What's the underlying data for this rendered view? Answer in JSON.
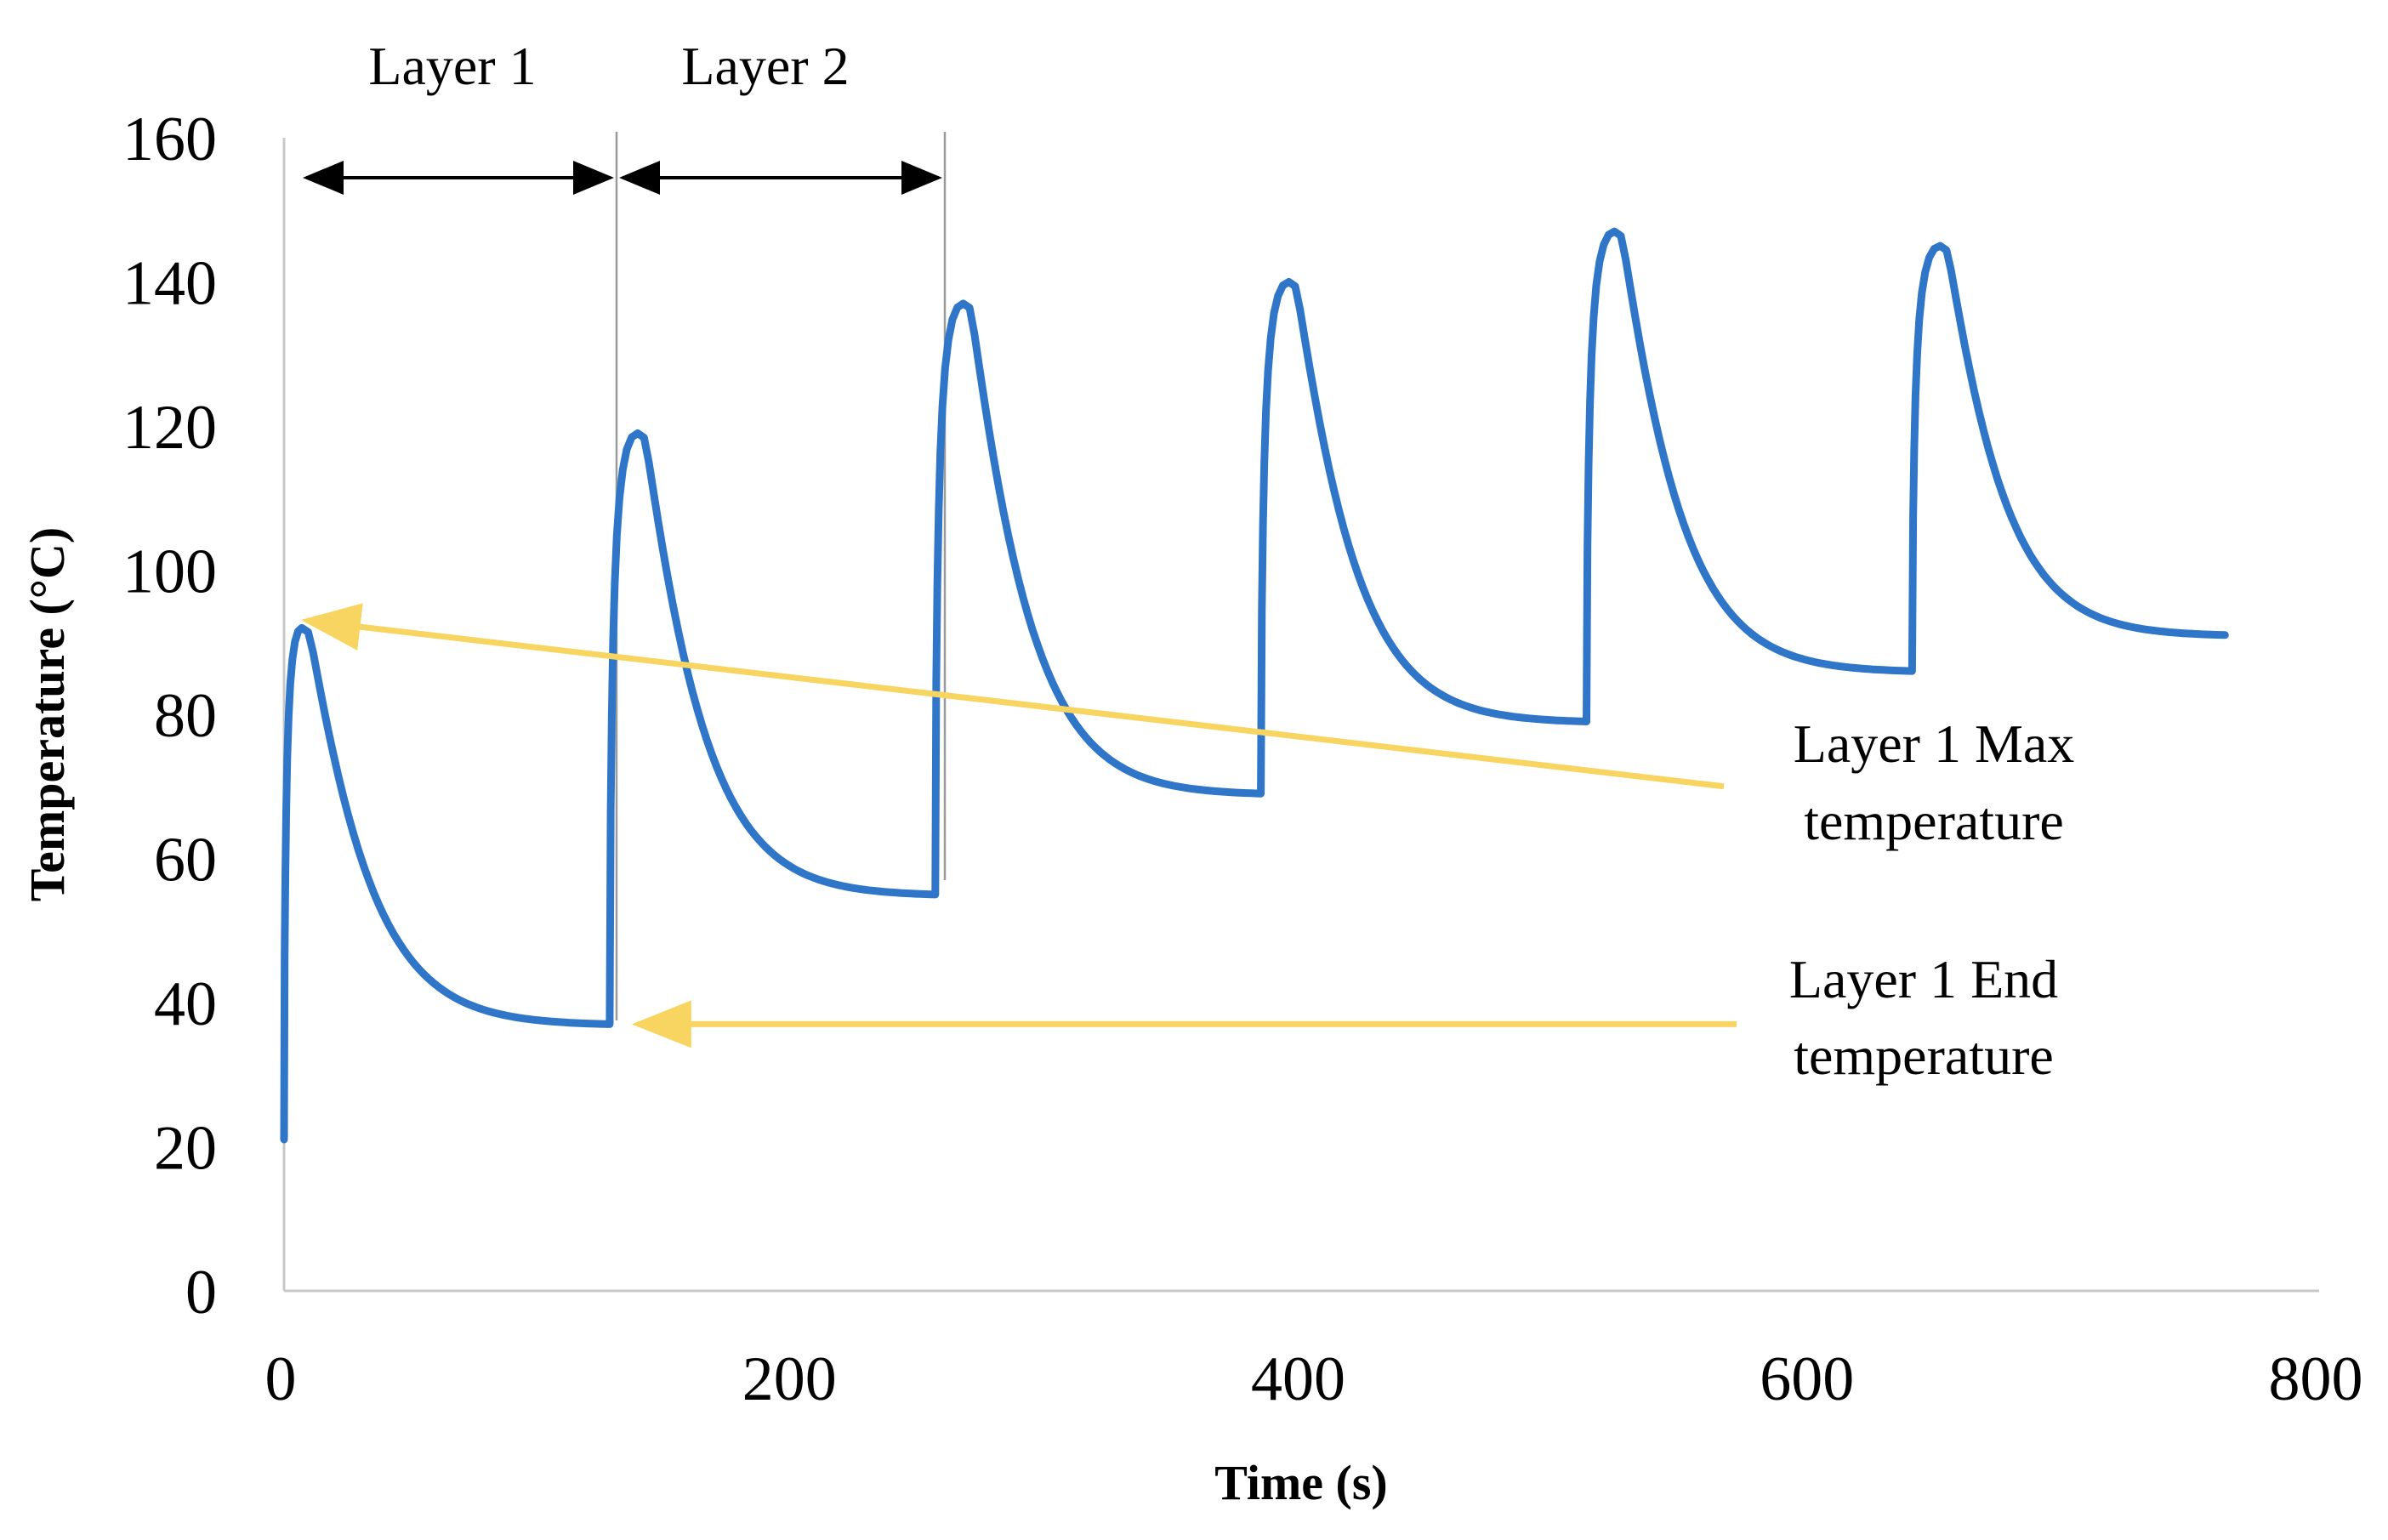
{
  "chart_data": {
    "type": "line",
    "title": "",
    "xlabel": "Time (s)",
    "ylabel": "Temperature (°C)",
    "xlim": [
      0,
      800
    ],
    "ylim": [
      0,
      160
    ],
    "xticks": [
      0,
      200,
      400,
      600,
      800
    ],
    "yticks": [
      0,
      20,
      40,
      60,
      80,
      100,
      120,
      140,
      160
    ],
    "grid": false,
    "series_color": "#2f75c8",
    "annotation_color": "#f7d560",
    "layer_period_s": 128,
    "layers": [
      {
        "start": 0,
        "start_temp": 21,
        "peak_time": 7,
        "peak_temp": 92,
        "end_time": 128,
        "end_temp": 37
      },
      {
        "start": 128,
        "start_temp": 37,
        "peak_time": 139,
        "peak_temp": 119,
        "end_time": 256,
        "end_temp": 55
      },
      {
        "start": 256,
        "start_temp": 55,
        "peak_time": 267,
        "peak_temp": 137,
        "end_time": 384,
        "end_temp": 69
      },
      {
        "start": 384,
        "start_temp": 69,
        "peak_time": 395,
        "peak_temp": 140,
        "end_time": 512,
        "end_temp": 79
      },
      {
        "start": 512,
        "start_temp": 79,
        "peak_time": 523,
        "peak_temp": 147,
        "end_time": 640,
        "end_temp": 86
      },
      {
        "start": 640,
        "start_temp": 86,
        "peak_time": 651,
        "peak_temp": 145,
        "end_time": 763,
        "end_temp": 91
      }
    ],
    "layer_spans": [
      {
        "label": "Layer 1",
        "from": 0,
        "to": 128
      },
      {
        "label": "Layer 2",
        "from": 128,
        "to": 256
      }
    ],
    "annotations": [
      {
        "lines": [
          "Layer 1 Max",
          "temperature"
        ],
        "arrow_from": [
          566,
          70
        ],
        "arrow_to": [
          9,
          93
        ]
      },
      {
        "lines": [
          "Layer 1 End",
          "temperature"
        ],
        "arrow_from": [
          571,
          37
        ],
        "arrow_to": [
          139,
          37
        ]
      }
    ]
  }
}
